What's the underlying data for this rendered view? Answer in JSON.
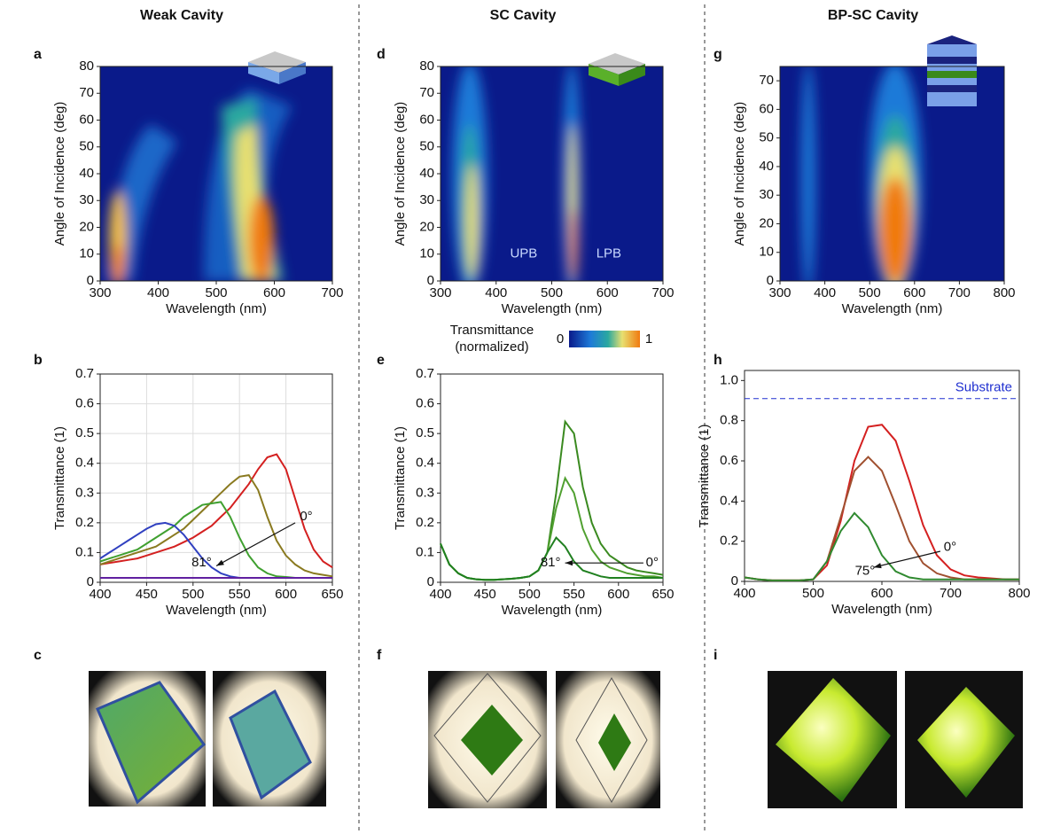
{
  "figure": {
    "columns": [
      "Weak Cavity",
      "SC Cavity",
      "BP-SC Cavity"
    ],
    "panel_labels": [
      "a",
      "b",
      "c",
      "d",
      "e",
      "f",
      "g",
      "h",
      "i"
    ]
  },
  "colorbar": {
    "title": [
      "Transmittance",
      "(normalized)"
    ],
    "ticks": [
      0,
      1
    ]
  },
  "chart_data": [
    {
      "type": "heatmap",
      "x_label": "Wavelength (nm)",
      "y_label": "Angle of Incidence (deg)",
      "xlim": [
        300,
        700
      ],
      "xticks": [
        300,
        400,
        500,
        600,
        700
      ],
      "ylim": [
        0,
        80
      ],
      "yticks": [
        0,
        10,
        20,
        30,
        40,
        50,
        60,
        70,
        80
      ]
    },
    {
      "type": "line",
      "x_label": "Wavelength (nm)",
      "y_label": "Transmittance (1)",
      "xlim": [
        400,
        650
      ],
      "xticks": [
        400,
        450,
        500,
        550,
        600,
        650
      ],
      "ylim": [
        0,
        0.7
      ],
      "yticks": [
        0,
        0.1,
        0.2,
        0.3,
        0.4,
        0.5,
        0.6,
        0.7
      ],
      "grid": true,
      "x": [
        400,
        410,
        420,
        430,
        440,
        450,
        460,
        470,
        480,
        490,
        500,
        510,
        520,
        530,
        540,
        550,
        560,
        570,
        580,
        590,
        600,
        610,
        620,
        630,
        640,
        650
      ],
      "series": [
        {
          "color": "#d42020",
          "values": [
            0.06,
            0.065,
            0.07,
            0.075,
            0.08,
            0.09,
            0.1,
            0.11,
            0.12,
            0.135,
            0.15,
            0.17,
            0.19,
            0.22,
            0.25,
            0.29,
            0.33,
            0.38,
            0.42,
            0.43,
            0.38,
            0.28,
            0.18,
            0.11,
            0.07,
            0.05
          ]
        },
        {
          "color": "#8a7a20",
          "values": [
            0.06,
            0.07,
            0.08,
            0.09,
            0.1,
            0.11,
            0.12,
            0.14,
            0.16,
            0.18,
            0.21,
            0.24,
            0.27,
            0.3,
            0.33,
            0.355,
            0.36,
            0.31,
            0.22,
            0.14,
            0.09,
            0.06,
            0.04,
            0.03,
            0.025,
            0.02
          ]
        },
        {
          "color": "#40a030",
          "values": [
            0.07,
            0.08,
            0.09,
            0.1,
            0.11,
            0.13,
            0.15,
            0.17,
            0.19,
            0.22,
            0.24,
            0.26,
            0.265,
            0.27,
            0.22,
            0.15,
            0.09,
            0.05,
            0.03,
            0.02,
            0.018,
            0.015,
            0.015,
            0.015,
            0.015,
            0.015
          ]
        },
        {
          "color": "#3040c0",
          "values": [
            0.08,
            0.1,
            0.12,
            0.14,
            0.16,
            0.18,
            0.195,
            0.2,
            0.19,
            0.16,
            0.12,
            0.08,
            0.05,
            0.03,
            0.02,
            0.015,
            0.015,
            0.015,
            0.015,
            0.015,
            0.015,
            0.015,
            0.015,
            0.015,
            0.015,
            0.015
          ]
        },
        {
          "color": "#6020a0",
          "values": [
            0.015,
            0.015,
            0.015,
            0.015,
            0.015,
            0.015,
            0.015,
            0.015,
            0.015,
            0.015,
            0.015,
            0.015,
            0.015,
            0.015,
            0.015,
            0.015,
            0.015,
            0.015,
            0.015,
            0.015,
            0.015,
            0.015,
            0.015,
            0.015,
            0.015,
            0.015
          ]
        }
      ],
      "annotations": [
        "0°",
        "81°"
      ]
    },
    {
      "type": "heatmap",
      "x_label": "Wavelength (nm)",
      "y_label": "Angle of Incidence (deg)",
      "xlim": [
        300,
        700
      ],
      "xticks": [
        300,
        400,
        500,
        600,
        700
      ],
      "ylim": [
        0,
        80
      ],
      "yticks": [
        0,
        10,
        20,
        30,
        40,
        50,
        60,
        70,
        80
      ],
      "annotations": [
        "UPB",
        "LPB"
      ]
    },
    {
      "type": "line",
      "x_label": "Wavelength (nm)",
      "y_label": "Transmittance (1)",
      "xlim": [
        400,
        650
      ],
      "xticks": [
        400,
        450,
        500,
        550,
        600,
        650
      ],
      "ylim": [
        0,
        0.7
      ],
      "yticks": [
        0,
        0.1,
        0.2,
        0.3,
        0.4,
        0.5,
        0.6,
        0.7
      ],
      "grid": false,
      "x": [
        400,
        410,
        420,
        430,
        440,
        450,
        460,
        470,
        480,
        490,
        500,
        510,
        520,
        530,
        540,
        550,
        560,
        570,
        580,
        590,
        600,
        610,
        620,
        630,
        640,
        650
      ],
      "series": [
        {
          "color": "#3a8a20",
          "values": [
            0.13,
            0.06,
            0.03,
            0.015,
            0.01,
            0.008,
            0.008,
            0.01,
            0.012,
            0.015,
            0.02,
            0.04,
            0.1,
            0.3,
            0.54,
            0.5,
            0.32,
            0.2,
            0.13,
            0.09,
            0.07,
            0.05,
            0.04,
            0.035,
            0.03,
            0.025
          ]
        },
        {
          "color": "#50a030",
          "values": [
            0.13,
            0.06,
            0.03,
            0.015,
            0.01,
            0.008,
            0.008,
            0.01,
            0.012,
            0.015,
            0.02,
            0.04,
            0.1,
            0.25,
            0.35,
            0.3,
            0.18,
            0.11,
            0.07,
            0.05,
            0.04,
            0.03,
            0.025,
            0.02,
            0.02,
            0.015
          ]
        },
        {
          "color": "#208020",
          "values": [
            0.13,
            0.06,
            0.03,
            0.015,
            0.01,
            0.008,
            0.008,
            0.01,
            0.012,
            0.015,
            0.02,
            0.04,
            0.1,
            0.15,
            0.12,
            0.07,
            0.04,
            0.03,
            0.02,
            0.015,
            0.015,
            0.015,
            0.015,
            0.015,
            0.015,
            0.015
          ]
        }
      ],
      "annotations": [
        "81°",
        "0°"
      ]
    },
    {
      "type": "heatmap",
      "x_label": "Wavelength (nm)",
      "y_label": "Angle of Incidence (deg)",
      "xlim": [
        300,
        800
      ],
      "xticks": [
        300,
        400,
        500,
        600,
        700,
        800
      ],
      "ylim": [
        0,
        75
      ],
      "yticks": [
        0,
        10,
        20,
        30,
        40,
        50,
        60,
        70
      ]
    },
    {
      "type": "line",
      "x_label": "Wavelength (nm)",
      "y_label": "Transmittance (1)",
      "xlim": [
        400,
        800
      ],
      "xticks": [
        400,
        500,
        600,
        700,
        800
      ],
      "ylim": [
        0,
        1.05
      ],
      "yticks": [
        0,
        0.2,
        0.4,
        0.6,
        0.8,
        {
          "value": 1,
          "label": "1.0"
        }
      ],
      "grid": false,
      "x": [
        400,
        420,
        440,
        460,
        480,
        500,
        520,
        540,
        560,
        580,
        600,
        620,
        640,
        660,
        680,
        700,
        720,
        740,
        760,
        780,
        800
      ],
      "series": [
        {
          "color": "#d42020",
          "values": [
            0.02,
            0.01,
            0.005,
            0.005,
            0.005,
            0.01,
            0.08,
            0.3,
            0.6,
            0.77,
            0.78,
            0.7,
            0.5,
            0.28,
            0.13,
            0.06,
            0.03,
            0.02,
            0.015,
            0.01,
            0.01
          ]
        },
        {
          "color": "#a05030",
          "values": [
            0.02,
            0.01,
            0.005,
            0.005,
            0.005,
            0.01,
            0.1,
            0.32,
            0.55,
            0.62,
            0.55,
            0.38,
            0.2,
            0.09,
            0.04,
            0.02,
            0.01,
            0.01,
            0.01,
            0.01,
            0.01
          ]
        },
        {
          "color": "#308a30",
          "values": [
            0.02,
            0.01,
            0.005,
            0.005,
            0.005,
            0.01,
            0.1,
            0.25,
            0.34,
            0.27,
            0.13,
            0.05,
            0.02,
            0.01,
            0.01,
            0.01,
            0.01,
            0.01,
            0.01,
            0.01,
            0.01
          ]
        }
      ],
      "reference": {
        "label": "Substrate",
        "value": 0.91,
        "color": "#2030d0"
      },
      "annotations": [
        "0°",
        "75°"
      ]
    }
  ]
}
